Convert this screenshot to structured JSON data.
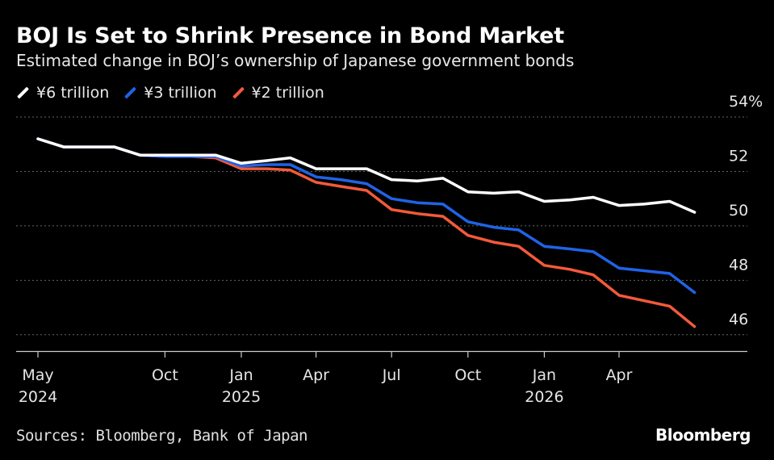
{
  "header": {
    "title": "BOJ Is Set to Shrink Presence in Bond Market",
    "subtitle": "Estimated change in BOJ’s ownership of Japanese government bonds"
  },
  "footer": {
    "source": "Sources: Bloomberg, Bank of Japan",
    "brand": "Bloomberg"
  },
  "colors": {
    "background": "#000000",
    "grid": "#666666",
    "axis": "#cccccc"
  },
  "chart_data": {
    "type": "line",
    "title": "BOJ Is Set to Shrink Presence in Bond Market",
    "subtitle": "Estimated change in BOJ’s ownership of Japanese government bonds",
    "ylim": [
      45.4,
      54
    ],
    "y_ticks": [
      46,
      48,
      50,
      52,
      54
    ],
    "y_tick_labels": [
      "46",
      "48",
      "50",
      "52",
      "54%"
    ],
    "grid": true,
    "legend_position": "top-left",
    "x_domain": [
      "2024-05-01",
      "2026-07-15"
    ],
    "x_ticks": [
      {
        "date": "2024-05-01",
        "label": "May",
        "sublabel": "2024"
      },
      {
        "date": "2024-10-01",
        "label": "Oct",
        "sublabel": ""
      },
      {
        "date": "2025-01-01",
        "label": "Jan",
        "sublabel": "2025"
      },
      {
        "date": "2025-04-01",
        "label": "Apr",
        "sublabel": ""
      },
      {
        "date": "2025-07-01",
        "label": "Jul",
        "sublabel": ""
      },
      {
        "date": "2025-10-01",
        "label": "Oct",
        "sublabel": ""
      },
      {
        "date": "2026-01-01",
        "label": "Jan",
        "sublabel": "2026"
      },
      {
        "date": "2026-04-01",
        "label": "Apr",
        "sublabel": ""
      }
    ],
    "x": [
      "2024-05-01",
      "2024-06-01",
      "2024-07-01",
      "2024-08-01",
      "2024-09-01",
      "2024-10-01",
      "2024-11-01",
      "2024-12-01",
      "2025-01-01",
      "2025-02-01",
      "2025-03-01",
      "2025-04-01",
      "2025-05-01",
      "2025-06-01",
      "2025-07-01",
      "2025-08-01",
      "2025-09-01",
      "2025-10-01",
      "2025-11-01",
      "2025-12-01",
      "2026-01-01",
      "2026-02-01",
      "2026-03-01",
      "2026-04-01",
      "2026-05-01",
      "2026-06-01",
      "2026-07-01"
    ],
    "series": [
      {
        "name": "¥6 trillion",
        "color": "#ffffff",
        "values": [
          53.2,
          52.9,
          52.9,
          52.9,
          52.6,
          52.6,
          52.6,
          52.6,
          52.3,
          52.4,
          52.5,
          52.1,
          52.1,
          52.1,
          51.7,
          51.65,
          51.75,
          51.25,
          51.2,
          51.25,
          50.9,
          50.95,
          51.05,
          50.75,
          50.8,
          50.9,
          50.5
        ]
      },
      {
        "name": "¥3 trillion",
        "color": "#1f63e6",
        "values": [
          53.2,
          52.9,
          52.9,
          52.9,
          52.6,
          52.55,
          52.55,
          52.55,
          52.2,
          52.25,
          52.25,
          51.8,
          51.7,
          51.55,
          51.0,
          50.85,
          50.8,
          50.15,
          49.95,
          49.85,
          49.25,
          49.15,
          49.05,
          48.45,
          48.35,
          48.25,
          47.55
        ]
      },
      {
        "name": "¥2 trillion",
        "color": "#f25a3a",
        "values": [
          53.2,
          52.9,
          52.9,
          52.9,
          52.6,
          52.55,
          52.55,
          52.5,
          52.1,
          52.1,
          52.05,
          51.6,
          51.45,
          51.3,
          50.6,
          50.45,
          50.35,
          49.65,
          49.4,
          49.25,
          48.55,
          48.4,
          48.2,
          47.45,
          47.25,
          47.05,
          46.3
        ]
      }
    ]
  }
}
